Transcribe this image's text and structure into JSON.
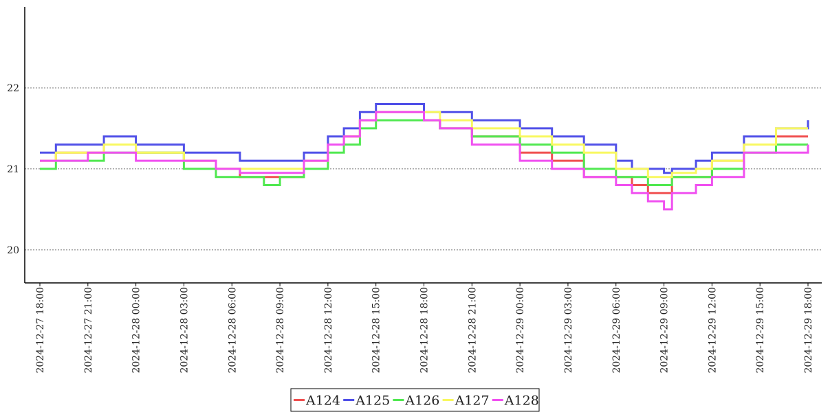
{
  "chart_data": {
    "type": "line",
    "title": "",
    "xlabel": "",
    "ylabel": "",
    "ylim": [
      19.6,
      23.0
    ],
    "y_ticks": [
      20,
      21,
      22
    ],
    "x_range": [
      "2024-12-27 18:00",
      "2024-12-29 18:00"
    ],
    "x_tick_labels": [
      "2024-12-27 18:00",
      "2024-12-27 21:00",
      "2024-12-28 00:00",
      "2024-12-28 03:00",
      "2024-12-28 06:00",
      "2024-12-28 09:00",
      "2024-12-28 12:00",
      "2024-12-28 15:00",
      "2024-12-28 18:00",
      "2024-12-28 21:00",
      "2024-12-29 00:00",
      "2024-12-29 03:00",
      "2024-12-29 06:00",
      "2024-12-29 09:00",
      "2024-12-29 12:00",
      "2024-12-29 15:00",
      "2024-12-29 18:00"
    ],
    "grid": "horizontal dotted",
    "legend_position": "bottom-center",
    "series": [
      {
        "name": "A124",
        "color": "#f05050",
        "points": [
          [
            "2024-12-27 18:00",
            21.1
          ],
          [
            "2024-12-27 19:00",
            21.2
          ],
          [
            "2024-12-27 21:00",
            21.2
          ],
          [
            "2024-12-27 22:00",
            21.3
          ],
          [
            "2024-12-28 00:00",
            21.2
          ],
          [
            "2024-12-28 03:00",
            21.1
          ],
          [
            "2024-12-28 05:00",
            21.0
          ],
          [
            "2024-12-28 06:30",
            20.9
          ],
          [
            "2024-12-28 09:00",
            20.9
          ],
          [
            "2024-12-28 10:30",
            21.1
          ],
          [
            "2024-12-28 12:00",
            21.3
          ],
          [
            "2024-12-28 13:00",
            21.4
          ],
          [
            "2024-12-28 14:00",
            21.6
          ],
          [
            "2024-12-28 15:00",
            21.7
          ],
          [
            "2024-12-28 18:00",
            21.6
          ],
          [
            "2024-12-28 19:00",
            21.5
          ],
          [
            "2024-12-28 21:00",
            21.4
          ],
          [
            "2024-12-29 00:00",
            21.2
          ],
          [
            "2024-12-29 02:00",
            21.1
          ],
          [
            "2024-12-29 04:00",
            20.9
          ],
          [
            "2024-12-29 06:00",
            20.9
          ],
          [
            "2024-12-29 07:00",
            20.8
          ],
          [
            "2024-12-29 08:00",
            20.7
          ],
          [
            "2024-12-29 09:00",
            20.7
          ],
          [
            "2024-12-29 09:30",
            20.9
          ],
          [
            "2024-12-29 11:00",
            20.9
          ],
          [
            "2024-12-29 12:00",
            21.1
          ],
          [
            "2024-12-29 14:00",
            21.3
          ],
          [
            "2024-12-29 16:00",
            21.4
          ],
          [
            "2024-12-29 18:00",
            21.4
          ]
        ]
      },
      {
        "name": "A125",
        "color": "#5050e8",
        "points": [
          [
            "2024-12-27 18:00",
            21.2
          ],
          [
            "2024-12-27 19:00",
            21.3
          ],
          [
            "2024-12-27 21:00",
            21.3
          ],
          [
            "2024-12-27 22:00",
            21.4
          ],
          [
            "2024-12-28 00:00",
            21.3
          ],
          [
            "2024-12-28 03:00",
            21.2
          ],
          [
            "2024-12-28 05:00",
            21.2
          ],
          [
            "2024-12-28 06:30",
            21.1
          ],
          [
            "2024-12-28 09:00",
            21.1
          ],
          [
            "2024-12-28 10:30",
            21.2
          ],
          [
            "2024-12-28 12:00",
            21.4
          ],
          [
            "2024-12-28 13:00",
            21.5
          ],
          [
            "2024-12-28 14:00",
            21.7
          ],
          [
            "2024-12-28 15:00",
            21.8
          ],
          [
            "2024-12-28 18:00",
            21.7
          ],
          [
            "2024-12-28 19:00",
            21.7
          ],
          [
            "2024-12-28 21:00",
            21.6
          ],
          [
            "2024-12-29 00:00",
            21.5
          ],
          [
            "2024-12-29 02:00",
            21.4
          ],
          [
            "2024-12-29 04:00",
            21.3
          ],
          [
            "2024-12-29 06:00",
            21.1
          ],
          [
            "2024-12-29 07:00",
            21.0
          ],
          [
            "2024-12-29 08:00",
            21.0
          ],
          [
            "2024-12-29 09:00",
            20.95
          ],
          [
            "2024-12-29 09:30",
            21.0
          ],
          [
            "2024-12-29 11:00",
            21.1
          ],
          [
            "2024-12-29 12:00",
            21.2
          ],
          [
            "2024-12-29 14:00",
            21.4
          ],
          [
            "2024-12-29 16:00",
            21.5
          ],
          [
            "2024-12-29 18:00",
            21.6
          ]
        ]
      },
      {
        "name": "A126",
        "color": "#50e850",
        "points": [
          [
            "2024-12-27 18:00",
            21.0
          ],
          [
            "2024-12-27 19:00",
            21.1
          ],
          [
            "2024-12-27 21:00",
            21.1
          ],
          [
            "2024-12-27 22:00",
            21.2
          ],
          [
            "2024-12-28 00:00",
            21.2
          ],
          [
            "2024-12-28 03:00",
            21.0
          ],
          [
            "2024-12-28 05:00",
            20.9
          ],
          [
            "2024-12-28 06:30",
            20.9
          ],
          [
            "2024-12-28 08:00",
            20.8
          ],
          [
            "2024-12-28 09:00",
            20.9
          ],
          [
            "2024-12-28 10:30",
            21.0
          ],
          [
            "2024-12-28 12:00",
            21.2
          ],
          [
            "2024-12-28 13:00",
            21.3
          ],
          [
            "2024-12-28 14:00",
            21.5
          ],
          [
            "2024-12-28 15:00",
            21.6
          ],
          [
            "2024-12-28 18:00",
            21.6
          ],
          [
            "2024-12-28 19:00",
            21.5
          ],
          [
            "2024-12-28 21:00",
            21.4
          ],
          [
            "2024-12-29 00:00",
            21.3
          ],
          [
            "2024-12-29 02:00",
            21.2
          ],
          [
            "2024-12-29 04:00",
            21.0
          ],
          [
            "2024-12-29 06:00",
            20.9
          ],
          [
            "2024-12-29 07:00",
            20.9
          ],
          [
            "2024-12-29 08:00",
            20.8
          ],
          [
            "2024-12-29 09:00",
            20.8
          ],
          [
            "2024-12-29 09:30",
            20.9
          ],
          [
            "2024-12-29 11:00",
            20.9
          ],
          [
            "2024-12-29 12:00",
            21.0
          ],
          [
            "2024-12-29 14:00",
            21.2
          ],
          [
            "2024-12-29 16:00",
            21.3
          ],
          [
            "2024-12-29 18:00",
            21.3
          ]
        ]
      },
      {
        "name": "A127",
        "color": "#f8f860",
        "points": [
          [
            "2024-12-27 18:00",
            21.1
          ],
          [
            "2024-12-27 19:00",
            21.2
          ],
          [
            "2024-12-27 21:00",
            21.2
          ],
          [
            "2024-12-27 22:00",
            21.3
          ],
          [
            "2024-12-28 00:00",
            21.2
          ],
          [
            "2024-12-28 03:00",
            21.1
          ],
          [
            "2024-12-28 05:00",
            21.0
          ],
          [
            "2024-12-28 06:30",
            21.0
          ],
          [
            "2024-12-28 09:00",
            21.0
          ],
          [
            "2024-12-28 10:30",
            21.1
          ],
          [
            "2024-12-28 12:00",
            21.3
          ],
          [
            "2024-12-28 13:00",
            21.4
          ],
          [
            "2024-12-28 14:00",
            21.6
          ],
          [
            "2024-12-28 15:00",
            21.7
          ],
          [
            "2024-12-28 18:00",
            21.7
          ],
          [
            "2024-12-28 19:00",
            21.6
          ],
          [
            "2024-12-28 21:00",
            21.5
          ],
          [
            "2024-12-29 00:00",
            21.4
          ],
          [
            "2024-12-29 02:00",
            21.3
          ],
          [
            "2024-12-29 04:00",
            21.2
          ],
          [
            "2024-12-29 06:00",
            21.0
          ],
          [
            "2024-12-29 07:00",
            21.0
          ],
          [
            "2024-12-29 08:00",
            20.9
          ],
          [
            "2024-12-29 09:00",
            20.9
          ],
          [
            "2024-12-29 09:30",
            20.95
          ],
          [
            "2024-12-29 11:00",
            21.0
          ],
          [
            "2024-12-29 12:00",
            21.1
          ],
          [
            "2024-12-29 14:00",
            21.3
          ],
          [
            "2024-12-29 16:00",
            21.5
          ],
          [
            "2024-12-29 18:00",
            21.5
          ]
        ]
      },
      {
        "name": "A128",
        "color": "#f050f0",
        "points": [
          [
            "2024-12-27 18:00",
            21.1
          ],
          [
            "2024-12-27 19:00",
            21.1
          ],
          [
            "2024-12-27 21:00",
            21.2
          ],
          [
            "2024-12-27 22:00",
            21.2
          ],
          [
            "2024-12-28 00:00",
            21.1
          ],
          [
            "2024-12-28 03:00",
            21.1
          ],
          [
            "2024-12-28 05:00",
            21.0
          ],
          [
            "2024-12-28 06:30",
            20.95
          ],
          [
            "2024-12-28 09:00",
            20.95
          ],
          [
            "2024-12-28 10:30",
            21.1
          ],
          [
            "2024-12-28 12:00",
            21.3
          ],
          [
            "2024-12-28 13:00",
            21.4
          ],
          [
            "2024-12-28 14:00",
            21.6
          ],
          [
            "2024-12-28 15:00",
            21.7
          ],
          [
            "2024-12-28 18:00",
            21.6
          ],
          [
            "2024-12-28 19:00",
            21.5
          ],
          [
            "2024-12-28 21:00",
            21.3
          ],
          [
            "2024-12-29 00:00",
            21.1
          ],
          [
            "2024-12-29 02:00",
            21.0
          ],
          [
            "2024-12-29 04:00",
            20.9
          ],
          [
            "2024-12-29 06:00",
            20.8
          ],
          [
            "2024-12-29 07:00",
            20.7
          ],
          [
            "2024-12-29 08:00",
            20.6
          ],
          [
            "2024-12-29 09:00",
            20.5
          ],
          [
            "2024-12-29 09:30",
            20.7
          ],
          [
            "2024-12-29 11:00",
            20.8
          ],
          [
            "2024-12-29 12:00",
            20.9
          ],
          [
            "2024-12-29 14:00",
            21.2
          ],
          [
            "2024-12-29 16:00",
            21.2
          ],
          [
            "2024-12-29 18:00",
            21.3
          ]
        ]
      }
    ]
  }
}
